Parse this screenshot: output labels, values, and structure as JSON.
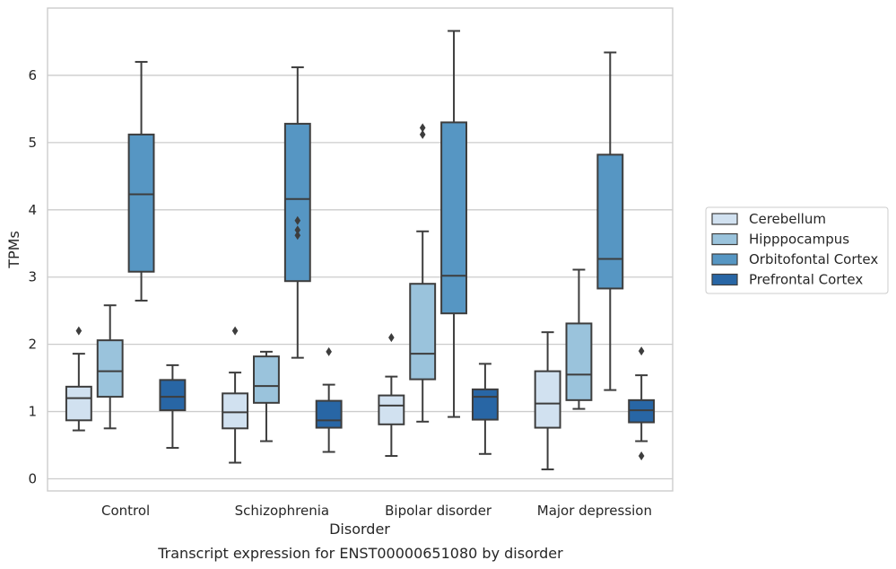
{
  "caption": "Transcript expression for ENST00000651080 by disorder",
  "chart_data": {
    "type": "boxplot",
    "xlabel": "Disorder",
    "ylabel": "TPMs",
    "ylim": [
      -0.18,
      7.0
    ],
    "yticks": [
      0,
      1,
      2,
      3,
      4,
      5,
      6
    ],
    "grid": "horizontal",
    "legend_position": "right",
    "categories": [
      "Control",
      "Schizophrenia",
      "Bipolar disorder",
      "Major depression"
    ],
    "series": [
      {
        "name": "Cerebellum",
        "color": "#d1e1f0",
        "boxes": [
          {
            "whisker_low": 0.72,
            "q1": 0.87,
            "median": 1.2,
            "q3": 1.37,
            "whisker_high": 1.86,
            "outliers": [
              2.2
            ]
          },
          {
            "whisker_low": 0.24,
            "q1": 0.75,
            "median": 0.99,
            "q3": 1.27,
            "whisker_high": 1.58,
            "outliers": [
              2.2
            ]
          },
          {
            "whisker_low": 0.34,
            "q1": 0.81,
            "median": 1.09,
            "q3": 1.24,
            "whisker_high": 1.52,
            "outliers": [
              2.1
            ]
          },
          {
            "whisker_low": 0.14,
            "q1": 0.76,
            "median": 1.12,
            "q3": 1.6,
            "whisker_high": 2.18,
            "outliers": []
          }
        ]
      },
      {
        "name": "Hipppocampus",
        "color": "#9ac3dc",
        "boxes": [
          {
            "whisker_low": 0.75,
            "q1": 1.22,
            "median": 1.6,
            "q3": 2.06,
            "whisker_high": 2.58,
            "outliers": []
          },
          {
            "whisker_low": 0.56,
            "q1": 1.13,
            "median": 1.38,
            "q3": 1.82,
            "whisker_high": 1.89,
            "outliers": []
          },
          {
            "whisker_low": 0.85,
            "q1": 1.48,
            "median": 1.86,
            "q3": 2.9,
            "whisker_high": 3.68,
            "outliers": [
              5.12,
              5.22
            ]
          },
          {
            "whisker_low": 1.04,
            "q1": 1.17,
            "median": 1.55,
            "q3": 2.31,
            "whisker_high": 3.11,
            "outliers": []
          }
        ]
      },
      {
        "name": "Orbitofontal Cortex",
        "color": "#5696c3",
        "boxes": [
          {
            "whisker_low": 2.65,
            "q1": 3.08,
            "median": 4.23,
            "q3": 5.12,
            "whisker_high": 6.2,
            "outliers": []
          },
          {
            "whisker_low": 1.8,
            "q1": 2.94,
            "median": 4.16,
            "q3": 5.28,
            "whisker_high": 6.12,
            "outliers": [
              3.62,
              3.7,
              3.84
            ]
          },
          {
            "whisker_low": 0.92,
            "q1": 2.46,
            "median": 3.02,
            "q3": 5.3,
            "whisker_high": 6.66,
            "outliers": []
          },
          {
            "whisker_low": 1.32,
            "q1": 2.83,
            "median": 3.27,
            "q3": 4.82,
            "whisker_high": 6.34,
            "outliers": []
          }
        ]
      },
      {
        "name": "Prefrontal Cortex",
        "color": "#2866a5",
        "boxes": [
          {
            "whisker_low": 0.46,
            "q1": 1.02,
            "median": 1.22,
            "q3": 1.47,
            "whisker_high": 1.69,
            "outliers": []
          },
          {
            "whisker_low": 0.4,
            "q1": 0.76,
            "median": 0.87,
            "q3": 1.16,
            "whisker_high": 1.4,
            "outliers": [
              1.89
            ]
          },
          {
            "whisker_low": 0.37,
            "q1": 0.88,
            "median": 1.22,
            "q3": 1.33,
            "whisker_high": 1.71,
            "outliers": []
          },
          {
            "whisker_low": 0.56,
            "q1": 0.84,
            "median": 1.02,
            "q3": 1.17,
            "whisker_high": 1.54,
            "outliers": [
              0.34,
              1.9
            ]
          }
        ]
      }
    ]
  }
}
